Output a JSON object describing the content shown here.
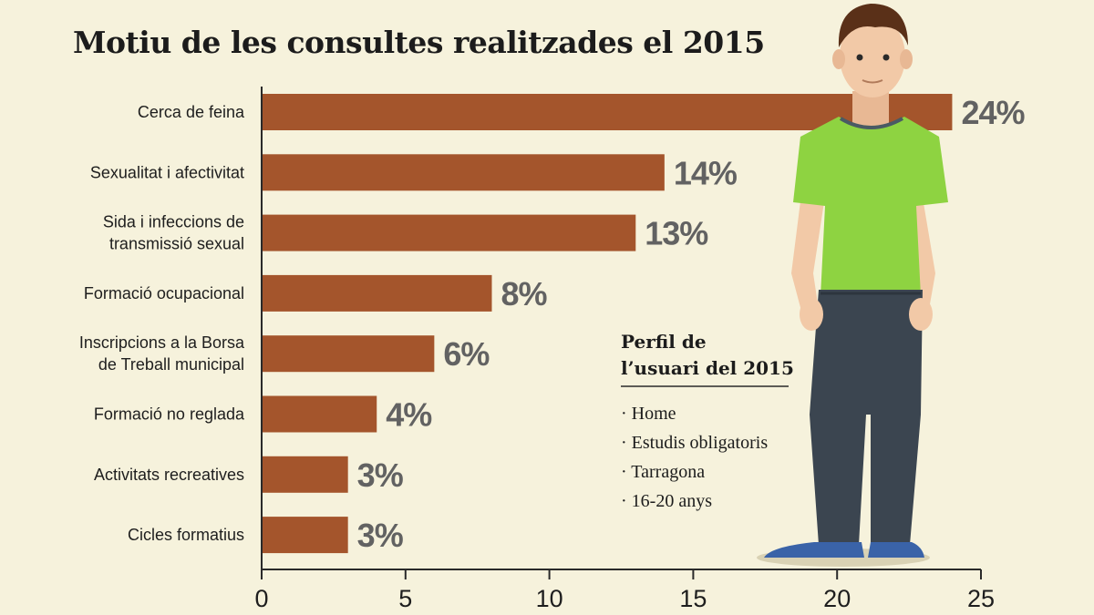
{
  "chart_data": {
    "type": "bar",
    "orientation": "horizontal",
    "title": "Motiu de les consultes realitzades el 2015",
    "categories": [
      [
        "Cerca de feina"
      ],
      [
        "Sexualitat i afectivitat"
      ],
      [
        "Sida i infeccions de",
        "transmissió sexual"
      ],
      [
        "Formació ocupacional"
      ],
      [
        "Inscripcions a la Borsa",
        "de Treball municipal"
      ],
      [
        "Formació no reglada"
      ],
      [
        "Activitats recreatives"
      ],
      [
        "Cicles formatius"
      ]
    ],
    "values": [
      24,
      14,
      13,
      8,
      6,
      4,
      3,
      3
    ],
    "value_labels": [
      "24%",
      "14%",
      "13%",
      "8%",
      "6%",
      "4%",
      "3%",
      "3%"
    ],
    "xlim": [
      0,
      25
    ],
    "xticks": [
      0,
      5,
      10,
      15,
      20,
      25
    ],
    "xtick_labels": [
      "0",
      "5",
      "10",
      "15",
      "20",
      "25"
    ],
    "xlabel": "",
    "ylabel": "",
    "grid": false,
    "legend": "none"
  },
  "profile": {
    "title_lines": [
      "Perfil de",
      "l’usuari del 2015"
    ],
    "items": [
      "· Home",
      "· Estudis obligatoris",
      "· Tarragona",
      "· 16-20 anys"
    ]
  },
  "colors": {
    "background": "#f6f2dc",
    "bar": "#a4552c",
    "value_label": "#626262",
    "text": "#1e1e1e",
    "shirt": "#8ed341",
    "jeans": "#3b4550",
    "skin": "#f2c9a7",
    "hair": "#5a3018",
    "shoes": "#3a63a8"
  }
}
